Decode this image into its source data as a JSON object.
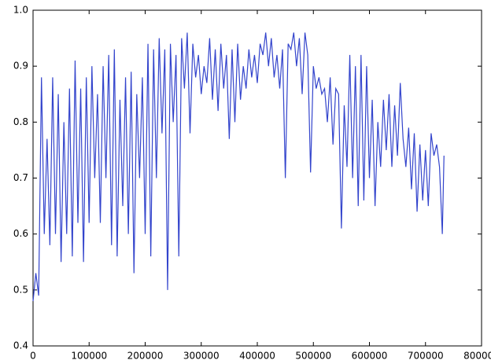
{
  "chart_data": {
    "type": "line",
    "x": [
      0,
      5000,
      10000,
      15000,
      20000,
      25000,
      30000,
      35000,
      40000,
      45000,
      50000,
      55000,
      60000,
      65000,
      70000,
      75000,
      80000,
      85000,
      90000,
      95000,
      100000,
      105000,
      110000,
      115000,
      120000,
      125000,
      130000,
      135000,
      140000,
      145000,
      150000,
      155000,
      160000,
      165000,
      170000,
      175000,
      180000,
      185000,
      190000,
      195000,
      200000,
      205000,
      210000,
      215000,
      220000,
      225000,
      230000,
      235000,
      240000,
      245000,
      250000,
      255000,
      260000,
      265000,
      270000,
      275000,
      280000,
      285000,
      290000,
      295000,
      300000,
      305000,
      310000,
      315000,
      320000,
      325000,
      330000,
      335000,
      340000,
      345000,
      350000,
      355000,
      360000,
      365000,
      370000,
      375000,
      380000,
      385000,
      390000,
      395000,
      400000,
      405000,
      410000,
      415000,
      420000,
      425000,
      430000,
      435000,
      440000,
      445000,
      450000,
      455000,
      460000,
      465000,
      470000,
      475000,
      480000,
      485000,
      490000,
      495000,
      500000,
      505000,
      510000,
      515000,
      520000,
      525000,
      530000,
      535000,
      540000,
      545000,
      550000,
      555000,
      560000,
      565000,
      570000,
      575000,
      580000,
      585000,
      590000,
      595000,
      600000,
      605000,
      610000,
      615000,
      620000,
      625000,
      630000,
      635000,
      640000,
      645000,
      650000,
      655000,
      660000,
      665000,
      670000,
      675000,
      680000,
      685000,
      690000,
      695000,
      700000,
      705000,
      710000,
      715000,
      720000,
      725000,
      730000,
      733000
    ],
    "series": [
      {
        "color": "#3344cc",
        "values": [
          0.48,
          0.53,
          0.49,
          0.88,
          0.6,
          0.77,
          0.58,
          0.88,
          0.6,
          0.85,
          0.55,
          0.8,
          0.6,
          0.86,
          0.56,
          0.91,
          0.62,
          0.86,
          0.55,
          0.88,
          0.62,
          0.9,
          0.7,
          0.85,
          0.62,
          0.9,
          0.7,
          0.92,
          0.58,
          0.93,
          0.56,
          0.84,
          0.65,
          0.88,
          0.6,
          0.89,
          0.53,
          0.85,
          0.7,
          0.88,
          0.6,
          0.94,
          0.56,
          0.93,
          0.7,
          0.95,
          0.78,
          0.93,
          0.5,
          0.94,
          0.8,
          0.92,
          0.56,
          0.95,
          0.86,
          0.96,
          0.78,
          0.94,
          0.88,
          0.92,
          0.85,
          0.9,
          0.87,
          0.95,
          0.84,
          0.93,
          0.82,
          0.94,
          0.86,
          0.92,
          0.77,
          0.93,
          0.8,
          0.94,
          0.84,
          0.9,
          0.86,
          0.93,
          0.88,
          0.92,
          0.87,
          0.94,
          0.92,
          0.96,
          0.9,
          0.95,
          0.88,
          0.92,
          0.86,
          0.93,
          0.7,
          0.94,
          0.93,
          0.96,
          0.9,
          0.95,
          0.85,
          0.96,
          0.92,
          0.71,
          0.9,
          0.86,
          0.88,
          0.85,
          0.86,
          0.8,
          0.88,
          0.76,
          0.86,
          0.85,
          0.61,
          0.83,
          0.72,
          0.92,
          0.7,
          0.9,
          0.65,
          0.92,
          0.66,
          0.9,
          0.7,
          0.84,
          0.65,
          0.8,
          0.72,
          0.84,
          0.75,
          0.85,
          0.72,
          0.83,
          0.74,
          0.87,
          0.77,
          0.72,
          0.79,
          0.68,
          0.78,
          0.64,
          0.76,
          0.66,
          0.75,
          0.65,
          0.78,
          0.74,
          0.76,
          0.72,
          0.6,
          0.74
        ]
      }
    ],
    "xlim": [
      0,
      800000
    ],
    "xticks": [
      0,
      100000,
      200000,
      300000,
      400000,
      500000,
      600000,
      700000,
      800000
    ],
    "ylim": [
      0.4,
      1
    ],
    "yticks": [
      0.4,
      0.5,
      0.6,
      0.7,
      0.8,
      0.9,
      {
        "value": 1,
        "label": "1.0"
      }
    ]
  }
}
